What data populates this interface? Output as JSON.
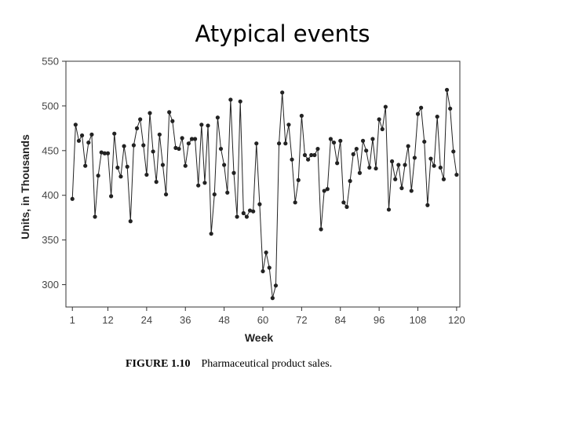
{
  "slide": {
    "title": "Atypical events"
  },
  "caption": {
    "figure": "FIGURE 1.10",
    "text": "Pharmaceutical product sales."
  },
  "chart_data": {
    "type": "line",
    "title": "",
    "xlabel": "Week",
    "ylabel": "Units, in Thousands",
    "xlim": [
      -1,
      121
    ],
    "ylim": [
      275,
      550
    ],
    "xticks": [
      1,
      12,
      24,
      36,
      48,
      60,
      72,
      84,
      96,
      108,
      120
    ],
    "yticks": [
      300,
      350,
      400,
      450,
      500,
      550
    ],
    "grid": false,
    "markers": true,
    "series_color": "#222222",
    "x": [
      1,
      2,
      3,
      4,
      5,
      6,
      7,
      8,
      9,
      10,
      11,
      12,
      13,
      14,
      15,
      16,
      17,
      18,
      19,
      20,
      21,
      22,
      23,
      24,
      25,
      26,
      27,
      28,
      29,
      30,
      31,
      32,
      33,
      34,
      35,
      36,
      37,
      38,
      39,
      40,
      41,
      42,
      43,
      44,
      45,
      46,
      47,
      48,
      49,
      50,
      51,
      52,
      53,
      54,
      55,
      56,
      57,
      58,
      59,
      60,
      61,
      62,
      63,
      64,
      65,
      66,
      67,
      68,
      69,
      70,
      71,
      72,
      73,
      74,
      75,
      76,
      77,
      78,
      79,
      80,
      81,
      82,
      83,
      84,
      85,
      86,
      87,
      88,
      89,
      90,
      91,
      92,
      93,
      94,
      95,
      96,
      97,
      98,
      99,
      100,
      101,
      102,
      103,
      104,
      105,
      106,
      107,
      108,
      109,
      110,
      111,
      112,
      113,
      114,
      115,
      116,
      117,
      118,
      119,
      120
    ],
    "y": [
      396,
      479,
      461,
      467,
      433,
      459,
      468,
      376,
      422,
      448,
      447,
      447,
      399,
      469,
      431,
      421,
      455,
      432,
      371,
      456,
      475,
      485,
      456,
      423,
      492,
      449,
      415,
      468,
      434,
      401,
      493,
      483,
      453,
      452,
      464,
      433,
      458,
      463,
      463,
      411,
      479,
      414,
      478,
      357,
      401,
      487,
      452,
      434,
      403,
      507,
      425,
      376,
      505,
      380,
      376,
      383,
      382,
      458,
      390,
      315,
      336,
      319,
      285,
      299,
      458,
      515,
      458,
      479,
      440,
      392,
      417,
      489,
      445,
      440,
      445,
      445,
      452,
      362,
      405,
      407,
      463,
      459,
      436,
      461,
      392,
      387,
      416,
      446,
      452,
      425,
      461,
      450,
      431,
      463,
      430,
      485,
      474,
      499,
      384,
      438,
      418,
      434,
      408,
      434,
      455,
      405,
      442,
      491,
      498,
      460,
      389,
      441,
      433,
      488,
      431,
      418,
      518,
      497,
      449,
      423
    ]
  }
}
